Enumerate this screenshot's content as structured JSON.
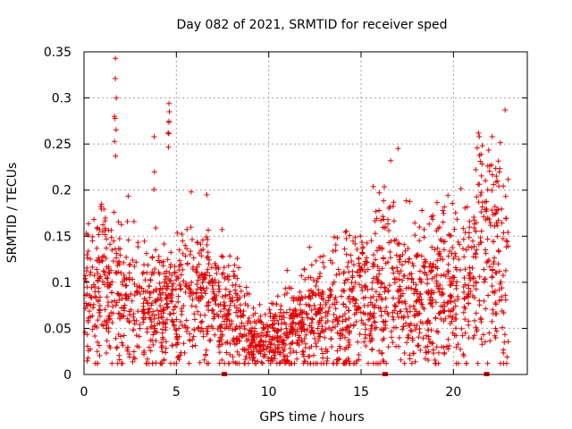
{
  "chart_data": {
    "type": "scatter",
    "title": "Day 082 of 2021, SRMTID for receiver sped",
    "xlabel": "GPS time / hours",
    "ylabel": "SRMTID / TECUs",
    "xlim": [
      0,
      24
    ],
    "ylim": [
      0,
      0.35
    ],
    "grid": true,
    "marker": "+",
    "series_color": "#e00000",
    "x_ticks": [
      {
        "value": 0,
        "label": "0"
      },
      {
        "value": 5,
        "label": "5"
      },
      {
        "value": 10,
        "label": "10"
      },
      {
        "value": 15,
        "label": "15"
      },
      {
        "value": 20,
        "label": "20"
      }
    ],
    "y_ticks": [
      {
        "value": 0,
        "label": "0"
      },
      {
        "value": 0.05,
        "label": "0.05"
      },
      {
        "value": 0.1,
        "label": "0.1"
      },
      {
        "value": 0.15,
        "label": "0.15"
      },
      {
        "value": 0.2,
        "label": "0.2"
      },
      {
        "value": 0.25,
        "label": "0.25"
      },
      {
        "value": 0.3,
        "label": "0.3"
      },
      {
        "value": 0.35,
        "label": "0.35"
      }
    ],
    "zero_markers_x": [
      7.6,
      16.3,
      21.8
    ],
    "data_coverage_hours": [
      0,
      23
    ],
    "trend": [
      [
        0.0,
        0.075
      ],
      [
        0.5,
        0.085
      ],
      [
        1.0,
        0.09
      ],
      [
        1.5,
        0.085
      ],
      [
        2.0,
        0.08
      ],
      [
        2.5,
        0.075
      ],
      [
        3.0,
        0.07
      ],
      [
        3.5,
        0.07
      ],
      [
        4.0,
        0.068
      ],
      [
        4.5,
        0.07
      ],
      [
        5.0,
        0.075
      ],
      [
        5.5,
        0.08
      ],
      [
        6.0,
        0.085
      ],
      [
        6.5,
        0.08
      ],
      [
        7.0,
        0.075
      ],
      [
        7.5,
        0.07
      ],
      [
        8.0,
        0.065
      ],
      [
        8.5,
        0.05
      ],
      [
        9.0,
        0.038
      ],
      [
        9.5,
        0.036
      ],
      [
        10.0,
        0.04
      ],
      [
        10.5,
        0.045
      ],
      [
        11.0,
        0.05
      ],
      [
        11.5,
        0.055
      ],
      [
        12.0,
        0.058
      ],
      [
        12.5,
        0.06
      ],
      [
        13.0,
        0.065
      ],
      [
        13.5,
        0.068
      ],
      [
        14.0,
        0.072
      ],
      [
        14.5,
        0.078
      ],
      [
        15.0,
        0.083
      ],
      [
        15.5,
        0.088
      ],
      [
        16.0,
        0.09
      ],
      [
        16.5,
        0.088
      ],
      [
        17.0,
        0.082
      ],
      [
        17.5,
        0.08
      ],
      [
        18.0,
        0.078
      ],
      [
        18.5,
        0.082
      ],
      [
        19.0,
        0.088
      ],
      [
        19.5,
        0.092
      ],
      [
        20.0,
        0.095
      ],
      [
        20.5,
        0.095
      ],
      [
        21.0,
        0.11
      ],
      [
        21.5,
        0.14
      ],
      [
        22.0,
        0.135
      ],
      [
        22.5,
        0.13
      ],
      [
        23.0,
        0.13
      ]
    ],
    "spread_fraction": 0.5,
    "approx_point_count": 2300,
    "bursts": [
      {
        "x": 0.3,
        "width": 0.25,
        "max": 0.22
      },
      {
        "x": 1.0,
        "width": 0.4,
        "max": 0.24
      },
      {
        "x": 1.7,
        "width": 0.15,
        "max": 0.343
      },
      {
        "x": 2.4,
        "width": 0.2,
        "max": 0.2
      },
      {
        "x": 3.8,
        "width": 0.15,
        "max": 0.258
      },
      {
        "x": 4.6,
        "width": 0.15,
        "max": 0.294
      },
      {
        "x": 5.8,
        "width": 0.15,
        "max": 0.2
      },
      {
        "x": 6.7,
        "width": 0.2,
        "max": 0.195
      },
      {
        "x": 14.6,
        "width": 0.2,
        "max": 0.17
      },
      {
        "x": 16.5,
        "width": 0.2,
        "max": 0.232
      },
      {
        "x": 17.0,
        "width": 0.15,
        "max": 0.245
      },
      {
        "x": 21.4,
        "width": 0.25,
        "max": 0.258
      },
      {
        "x": 22.1,
        "width": 0.2,
        "max": 0.258
      }
    ],
    "peaks": [
      {
        "x": 1.7,
        "y": 0.343
      },
      {
        "x": 1.75,
        "y": 0.3
      },
      {
        "x": 1.65,
        "y": 0.28
      },
      {
        "x": 4.6,
        "y": 0.294
      },
      {
        "x": 4.62,
        "y": 0.285
      },
      {
        "x": 4.55,
        "y": 0.262
      },
      {
        "x": 3.8,
        "y": 0.258
      },
      {
        "x": 5.8,
        "y": 0.198
      },
      {
        "x": 6.65,
        "y": 0.195
      },
      {
        "x": 11.0,
        "y": 0.113
      },
      {
        "x": 16.6,
        "y": 0.232
      },
      {
        "x": 17.0,
        "y": 0.245
      },
      {
        "x": 21.4,
        "y": 0.258
      },
      {
        "x": 22.1,
        "y": 0.258
      }
    ]
  }
}
